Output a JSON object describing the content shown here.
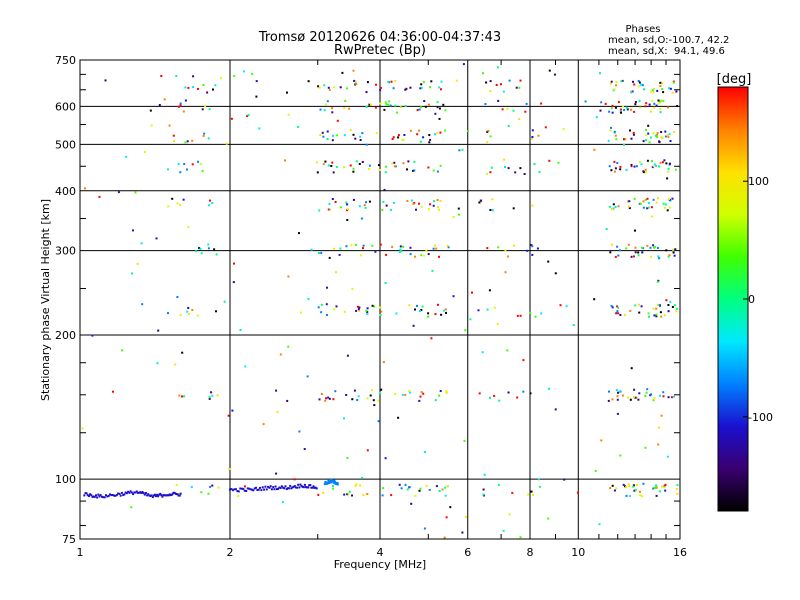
{
  "chart_data": {
    "type": "scatter",
    "title": "Tromsø 20120626 04:36:00-04:37:43",
    "subtitle": "RwPretec (Bp)",
    "xlabel": "Frequency [MHz]",
    "ylabel": "Stationary phase Virtual Height [km]",
    "x_scale": "log",
    "y_scale": "log",
    "xlim": [
      1,
      16
    ],
    "ylim": [
      75,
      750
    ],
    "x_ticks": [
      1,
      2,
      4,
      6,
      8,
      10,
      16
    ],
    "x_tick_labels": [
      "1",
      "2",
      "4",
      "6",
      "8",
      "10",
      "16"
    ],
    "y_ticks": [
      75,
      100,
      200,
      300,
      400,
      500,
      600,
      750
    ],
    "y_tick_labels": [
      "75",
      "100",
      "200",
      "300",
      "400",
      "500",
      "600",
      "750"
    ],
    "grid": true,
    "stats": {
      "heading": "Phases",
      "line1": "mean, sd,O:-100.7, 42.2",
      "line2": "mean, sd,X:  94.1, 49.6"
    },
    "colorbar": {
      "label": "[deg]",
      "ticks": [
        100,
        0,
        -100
      ],
      "tick_labels": [
        "100",
        "0",
        "-100"
      ],
      "range": [
        -180,
        180
      ],
      "colormap": [
        "#000000",
        "#3a0070",
        "#1a10d0",
        "#0080ff",
        "#00e8ff",
        "#00ff80",
        "#40ff00",
        "#d0ff00",
        "#ffe000",
        "#ff8000",
        "#ff0000"
      ]
    },
    "echo_bands": {
      "heights": [
        95,
        150,
        225,
        300,
        375,
        450,
        520,
        600,
        660
      ],
      "frequency_ranges": [
        [
          1.5,
          1.9
        ],
        [
          3.0,
          5.5
        ],
        [
          6.3,
          8.5
        ],
        [
          11.5,
          15.8
        ]
      ]
    },
    "traces": [
      {
        "points": [
          [
            1.02,
            93
          ],
          [
            1.1,
            92
          ],
          [
            1.2,
            93
          ],
          [
            1.3,
            94
          ],
          [
            1.4,
            92
          ],
          [
            1.5,
            93
          ],
          [
            1.6,
            93
          ]
        ],
        "color": "#1a10d0"
      },
      {
        "points": [
          [
            2.0,
            95
          ],
          [
            2.2,
            95
          ],
          [
            2.4,
            96
          ],
          [
            2.6,
            96
          ],
          [
            2.8,
            97
          ],
          [
            3.0,
            96
          ]
        ],
        "color": "#1a10d0"
      },
      {
        "points": [
          [
            3.1,
            98
          ],
          [
            3.2,
            99
          ],
          [
            3.3,
            98
          ]
        ],
        "color": "#0080ff"
      }
    ]
  }
}
